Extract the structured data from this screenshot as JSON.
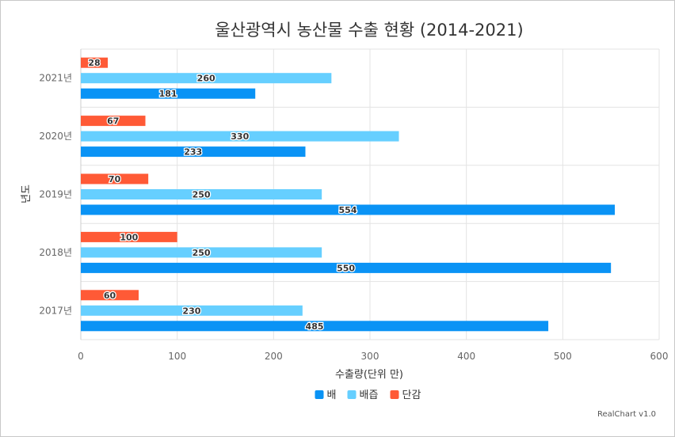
{
  "chart_data": {
    "type": "bar",
    "orientation": "horizontal",
    "title": "울산광역시 농산물 수출 현황 (2014-2021)",
    "xlabel": "수출량(단위 만)",
    "ylabel": "년도",
    "categories": [
      "2021년",
      "2020년",
      "2019년",
      "2018년",
      "2017년"
    ],
    "series": [
      {
        "name": "단감",
        "color": "#ff5a36",
        "values": [
          28,
          67,
          70,
          100,
          60
        ]
      },
      {
        "name": "배즙",
        "color": "#66cfff",
        "values": [
          260,
          330,
          250,
          250,
          230
        ]
      },
      {
        "name": "배",
        "color": "#0a93f5",
        "values": [
          181,
          233,
          554,
          550,
          485
        ]
      }
    ],
    "legend_order": [
      "배",
      "배즙",
      "단감"
    ],
    "xlim": [
      0,
      600
    ],
    "xticks": [
      0,
      100,
      200,
      300,
      400,
      500,
      600
    ],
    "grid": true,
    "legend_position": "bottom",
    "credit": "RealChart v1.0"
  }
}
